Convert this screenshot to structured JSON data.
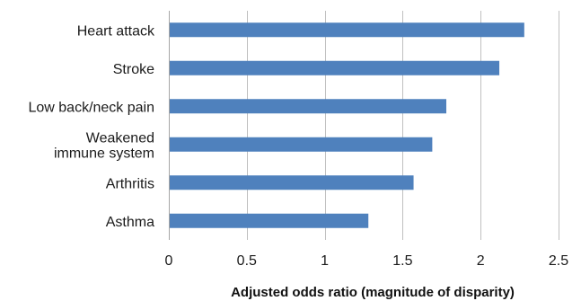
{
  "chart_data": {
    "type": "bar",
    "orientation": "horizontal",
    "categories": [
      "Heart attack",
      "Stroke",
      "Low back/neck pain",
      "Weakened immune system",
      "Arthritis",
      "Asthma"
    ],
    "category_label_lines": [
      [
        "Heart attack"
      ],
      [
        "Stroke"
      ],
      [
        "Low back/neck pain"
      ],
      [
        "Weakened",
        "immune system"
      ],
      [
        "Arthritis"
      ],
      [
        "Asthma"
      ]
    ],
    "values": [
      2.28,
      2.12,
      1.78,
      1.69,
      1.57,
      1.28
    ],
    "xlabel": "Adjusted odds ratio (magnitude of disparity)",
    "ylabel": "",
    "title": "",
    "xlim": [
      0,
      2.5
    ],
    "xticks": [
      0,
      0.5,
      1,
      1.5,
      2,
      2.5
    ],
    "xtick_labels": [
      "0",
      "0.5",
      "1",
      "1.5",
      "2",
      "2.5"
    ],
    "grid": "vertical",
    "legend": "none",
    "bar_color": "#4f81bd",
    "grid_color": "#bfbfbf"
  }
}
